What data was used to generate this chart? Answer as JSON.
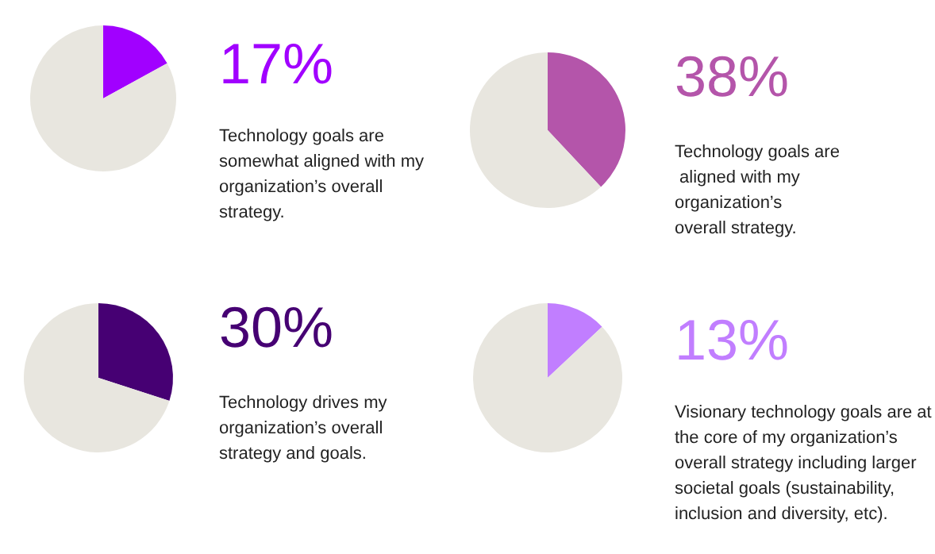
{
  "chart_data": [
    {
      "type": "pie",
      "categories": [
        null,
        null
      ],
      "annotations": [
        "Technology goals are somewhat aligned with my organization’s overall strategy."
      ],
      "values": [
        17,
        83
      ],
      "colors": [
        "#a100ff",
        "#e8e6df"
      ],
      "value_labels": [
        "17%",
        null
      ]
    },
    {
      "type": "pie",
      "categories": [
        null,
        null
      ],
      "annotations": [
        "Technology goals are aligned with my organization’s overall strategy."
      ],
      "values": [
        38,
        62
      ],
      "colors": [
        "#b455aa",
        "#e8e6df"
      ],
      "value_labels": [
        "38%",
        null
      ]
    },
    {
      "type": "pie",
      "categories": [
        null,
        null
      ],
      "annotations": [
        "Technology drives my organization’s overall strategy and goals."
      ],
      "values": [
        30,
        70
      ],
      "colors": [
        "#460073",
        "#e8e6df"
      ],
      "value_labels": [
        "30%",
        null
      ]
    },
    {
      "type": "pie",
      "categories": [
        null,
        null
      ],
      "annotations": [
        "Visionary technology goals are at the core of my organization’s overall strategy including larger societal goals (sustainability, inclusion and diversity, etc)."
      ],
      "values": [
        13,
        87
      ],
      "colors": [
        "#c17eff",
        "#e8e6df"
      ],
      "value_labels": [
        "13%",
        null
      ]
    }
  ]
}
